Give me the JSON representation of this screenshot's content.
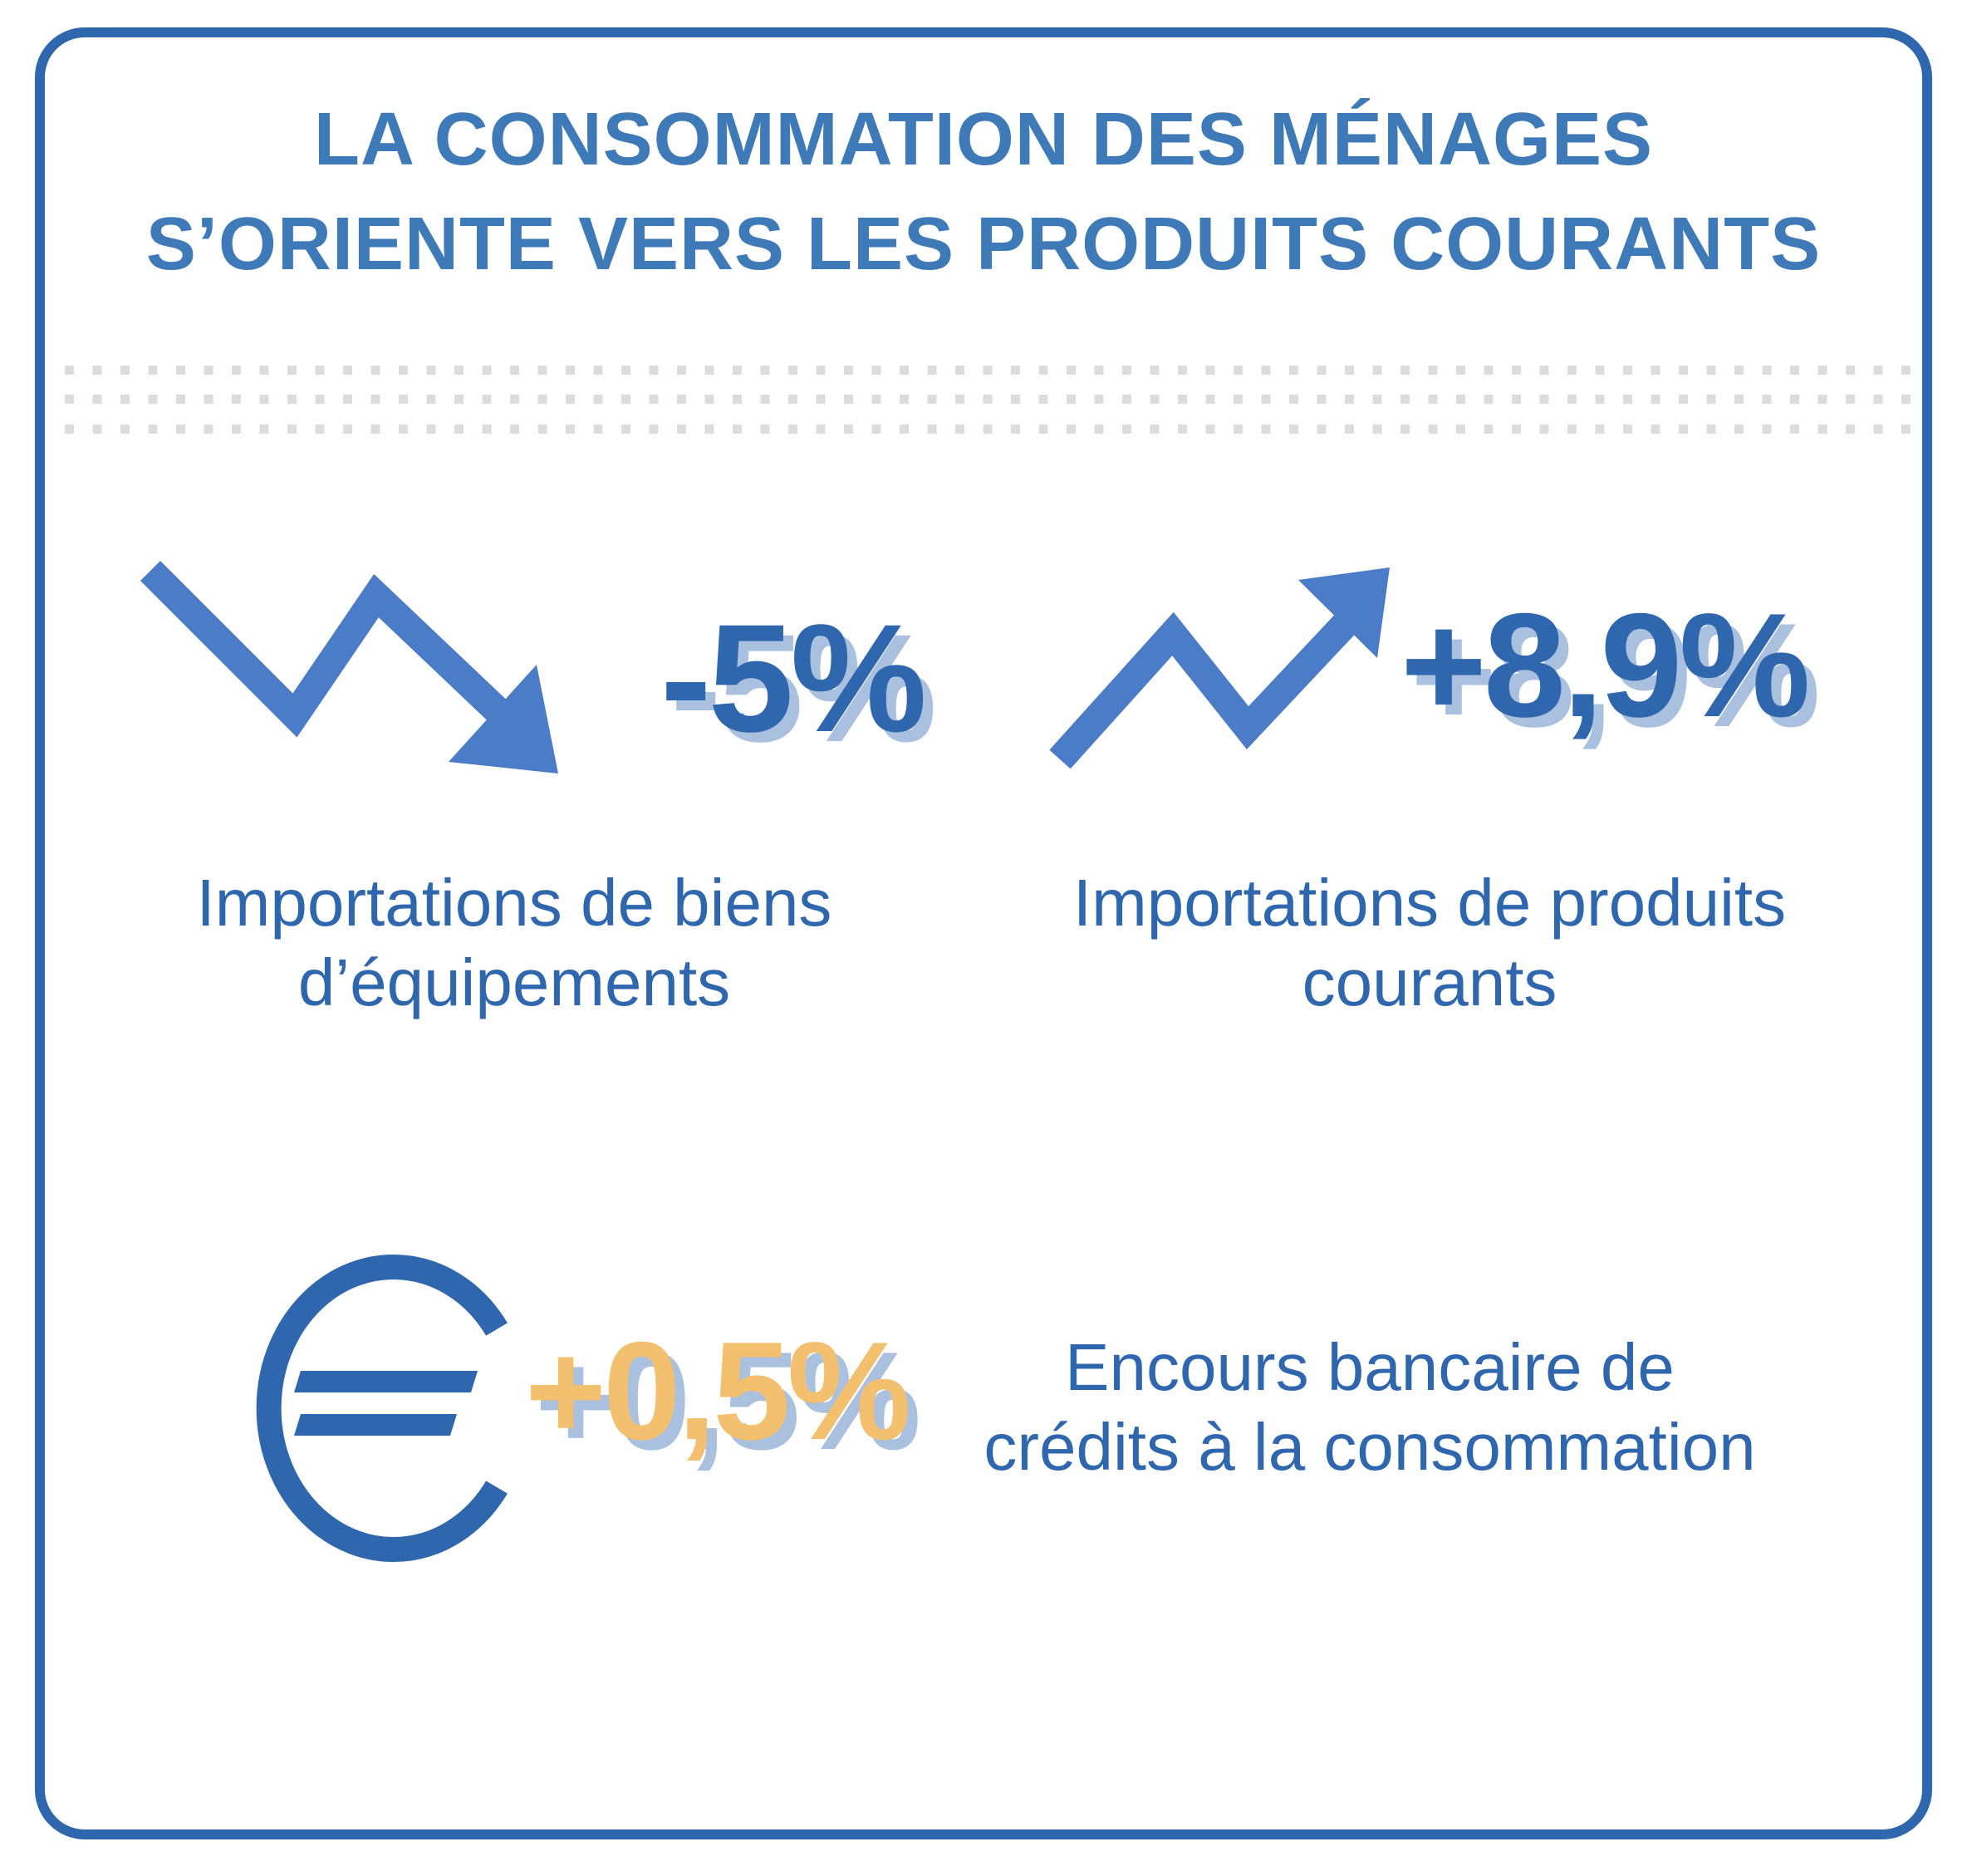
{
  "title": {
    "line1": "LA CONSOMMATION DES MÉNAGES",
    "line2": "S’ORIENTE VERS LES PRODUITS COURANTS"
  },
  "stats": [
    {
      "value": "-5%",
      "label_line1": "Importations de biens",
      "label_line2": "d’équipements",
      "icon": "trend-down-arrow-icon"
    },
    {
      "value": "+8,9%",
      "label_line1": "Importations de produits",
      "label_line2": "courants",
      "icon": "trend-up-arrow-icon"
    },
    {
      "value": "+0,5%",
      "label_line1": "Encours bancaire de",
      "label_line2": "crédits à la consommation",
      "icon": "euro-icon"
    }
  ],
  "colors": {
    "primary": "#2e67ad",
    "title": "#3f7ab8",
    "arrow": "#4a7cc7",
    "accent": "#f2c06e",
    "shadow": "#a9c0de",
    "dots": "#dcdcdc"
  }
}
